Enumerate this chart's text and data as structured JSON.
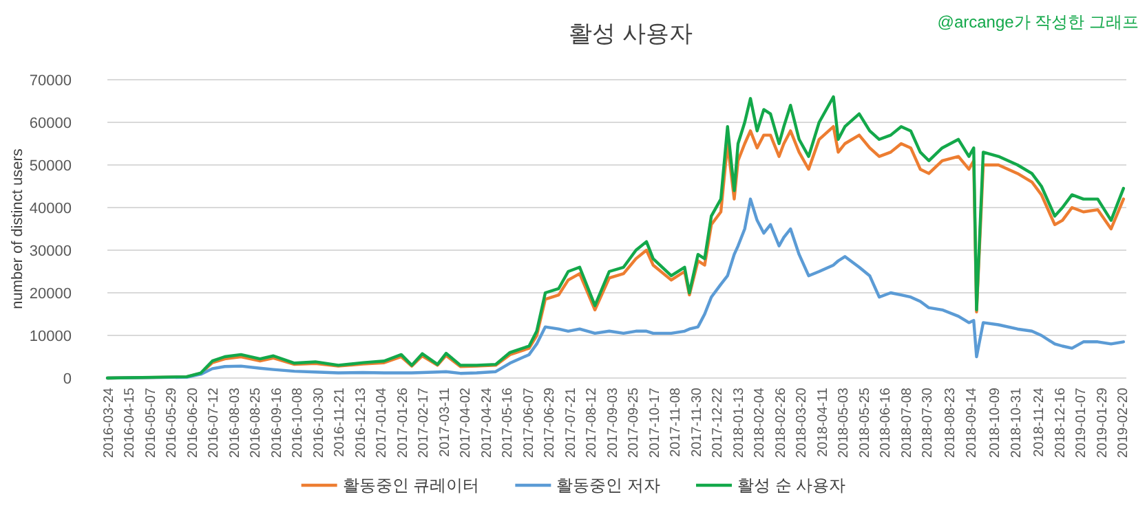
{
  "chart_data": {
    "type": "line",
    "title": "활성 사용자",
    "ylabel": "number of distinct users",
    "annotations": [
      "@arcange가 작성한 그래프"
    ],
    "xlim": [
      "2016-03-24",
      "2019-02-25"
    ],
    "ylim": [
      0,
      70000
    ],
    "yticks": [
      0,
      10000,
      20000,
      30000,
      40000,
      50000,
      60000,
      70000
    ],
    "xticks": [
      "2016-03-24",
      "2016-04-15",
      "2016-05-07",
      "2016-05-29",
      "2016-06-20",
      "2016-07-12",
      "2016-08-03",
      "2016-08-25",
      "2016-09-16",
      "2016-10-08",
      "2016-10-30",
      "2016-11-21",
      "2016-12-13",
      "2017-01-04",
      "2017-01-26",
      "2017-02-17",
      "2017-03-11",
      "2017-04-02",
      "2017-04-24",
      "2017-05-16",
      "2017-06-07",
      "2017-06-29",
      "2017-07-21",
      "2017-08-12",
      "2017-09-03",
      "2017-09-25",
      "2017-10-17",
      "2017-11-08",
      "2017-11-30",
      "2017-12-22",
      "2018-01-13",
      "2018-02-04",
      "2018-02-26",
      "2018-03-20",
      "2018-04-11",
      "2018-05-03",
      "2018-05-25",
      "2018-06-16",
      "2018-07-08",
      "2018-07-30",
      "2018-08-23",
      "2018-09-14",
      "2018-10-09",
      "2018-10-31",
      "2018-11-24",
      "2018-12-16",
      "2019-01-07",
      "2019-01-29",
      "2019-02-20"
    ],
    "grid": "y",
    "legend": "bottom",
    "line_style": "solid",
    "x": [
      "2016-03-24",
      "2016-06-15",
      "2016-06-30",
      "2016-07-12",
      "2016-07-25",
      "2016-08-11",
      "2016-08-31",
      "2016-09-14",
      "2016-10-06",
      "2016-10-28",
      "2016-11-21",
      "2016-12-17",
      "2017-01-08",
      "2017-01-26",
      "2017-02-06",
      "2017-02-17",
      "2017-03-05",
      "2017-03-14",
      "2017-03-29",
      "2017-04-15",
      "2017-05-05",
      "2017-05-20",
      "2017-06-09",
      "2017-06-17",
      "2017-06-26",
      "2017-07-10",
      "2017-07-20",
      "2017-08-01",
      "2017-08-17",
      "2017-09-01",
      "2017-09-16",
      "2017-09-29",
      "2017-10-10",
      "2017-10-17",
      "2017-11-05",
      "2017-11-19",
      "2017-11-24",
      "2017-12-03",
      "2017-12-10",
      "2017-12-17",
      "2017-12-27",
      "2018-01-03",
      "2018-01-10",
      "2018-01-14",
      "2018-01-21",
      "2018-01-27",
      "2018-02-03",
      "2018-02-10",
      "2018-02-17",
      "2018-02-26",
      "2018-03-03",
      "2018-03-10",
      "2018-03-19",
      "2018-03-29",
      "2018-04-09",
      "2018-04-24",
      "2018-04-29",
      "2018-05-06",
      "2018-05-21",
      "2018-06-01",
      "2018-06-11",
      "2018-06-23",
      "2018-07-04",
      "2018-07-14",
      "2018-07-24",
      "2018-08-02",
      "2018-08-16",
      "2018-09-02",
      "2018-09-13",
      "2018-09-18",
      "2018-09-21",
      "2018-09-28",
      "2018-10-14",
      "2018-11-03",
      "2018-11-18",
      "2018-11-28",
      "2018-12-12",
      "2018-12-20",
      "2018-12-30",
      "2019-01-11",
      "2019-01-26",
      "2019-02-09",
      "2019-02-22"
    ],
    "series": [
      {
        "name": "활동중인 큐레이터",
        "color": "#ed7d31",
        "values": [
          0,
          250,
          1100,
          3600,
          4500,
          5000,
          4000,
          4700,
          3200,
          3400,
          2800,
          3300,
          3600,
          5000,
          2800,
          5200,
          3000,
          5300,
          2700,
          2800,
          3000,
          5500,
          7000,
          10000,
          18500,
          19500,
          23000,
          24500,
          16000,
          23500,
          24500,
          28000,
          30000,
          26500,
          23000,
          25000,
          19500,
          27500,
          26500,
          36000,
          39000,
          55000,
          42000,
          51000,
          55000,
          58000,
          54000,
          57000,
          57000,
          52000,
          55000,
          58000,
          53000,
          49000,
          56000,
          59000,
          53000,
          55000,
          57000,
          54000,
          52000,
          53000,
          55000,
          54000,
          49000,
          48000,
          51000,
          52000,
          49000,
          51000,
          15500,
          50000,
          50000,
          48000,
          46000,
          43000,
          36000,
          37000,
          40000,
          39000,
          39500,
          35000,
          42000
        ]
      },
      {
        "name": "활동중인 저자",
        "color": "#5b9bd5",
        "values": [
          0,
          200,
          900,
          2200,
          2700,
          2800,
          2300,
          2000,
          1600,
          1400,
          1200,
          1300,
          1200,
          1200,
          1200,
          1300,
          1400,
          1500,
          1100,
          1200,
          1500,
          3500,
          5500,
          8000,
          12000,
          11500,
          11000,
          11500,
          10500,
          11000,
          10500,
          11000,
          11000,
          10500,
          10500,
          11000,
          11500,
          12000,
          15000,
          19000,
          22000,
          24000,
          29000,
          31000,
          35000,
          42000,
          37000,
          34000,
          36000,
          31000,
          33000,
          35000,
          29000,
          24000,
          25000,
          26500,
          27500,
          28500,
          26000,
          24000,
          19000,
          20000,
          19500,
          19000,
          18000,
          16500,
          16000,
          14500,
          13000,
          13500,
          5000,
          13000,
          12500,
          11500,
          11000,
          10000,
          8000,
          7500,
          7000,
          8500,
          8500,
          8000,
          8500
        ]
      },
      {
        "name": "활성 순 사용자",
        "color": "#13a84a",
        "values": [
          0,
          300,
          1200,
          4000,
          5000,
          5500,
          4500,
          5200,
          3500,
          3800,
          3000,
          3600,
          4000,
          5500,
          3000,
          5700,
          3200,
          5800,
          3000,
          3000,
          3200,
          6000,
          7500,
          11000,
          20000,
          21000,
          25000,
          26000,
          17000,
          25000,
          26000,
          30000,
          32000,
          28000,
          24000,
          26000,
          20000,
          29000,
          28000,
          38000,
          42000,
          59000,
          44000,
          55000,
          60000,
          65600,
          58000,
          63000,
          62000,
          55000,
          59000,
          64000,
          56000,
          52000,
          60000,
          66000,
          56000,
          59000,
          62000,
          58000,
          56000,
          57000,
          59000,
          58000,
          53000,
          51000,
          54000,
          56000,
          52000,
          54000,
          16000,
          53000,
          52000,
          50000,
          48000,
          45000,
          38000,
          40000,
          43000,
          42000,
          42000,
          37000,
          44500
        ]
      }
    ]
  }
}
